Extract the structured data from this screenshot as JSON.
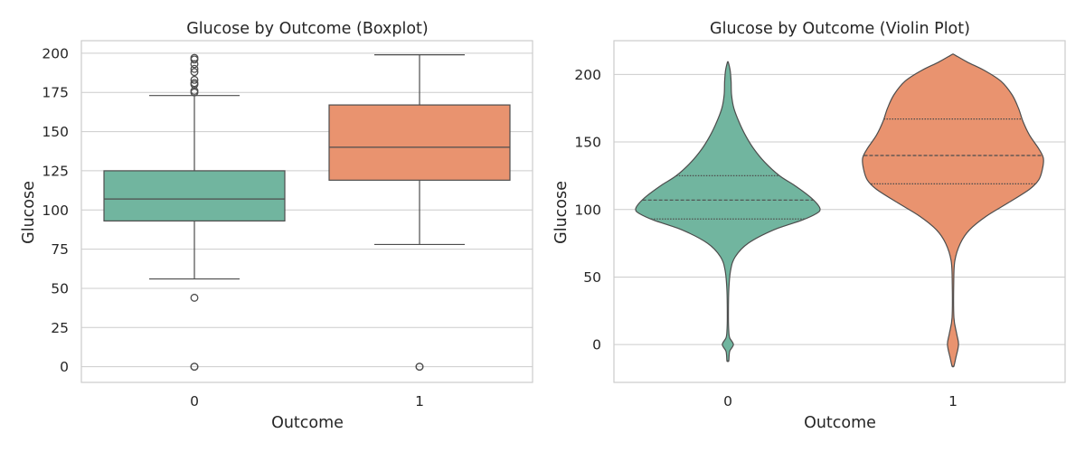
{
  "chart_data": [
    {
      "type": "box",
      "title": "Glucose by Outcome (Boxplot)",
      "xlabel": "Outcome",
      "ylabel": "Glucose",
      "ylim": [
        -10,
        208
      ],
      "yticks": [
        0,
        25,
        50,
        75,
        100,
        125,
        150,
        175,
        200
      ],
      "grid": true,
      "categories": [
        "0",
        "1"
      ],
      "colors": [
        "#71b59f",
        "#e9936f"
      ],
      "boxes": [
        {
          "category": "0",
          "whisker_low": 56,
          "q1": 93,
          "median": 107,
          "q3": 125,
          "whisker_high": 173,
          "outliers": [
            0,
            0,
            44,
            175,
            176,
            180,
            181,
            183,
            188,
            190,
            193,
            196,
            197
          ]
        },
        {
          "category": "1",
          "whisker_low": 78,
          "q1": 119,
          "median": 140,
          "q3": 167,
          "whisker_high": 199,
          "outliers": [
            0,
            0
          ]
        }
      ]
    },
    {
      "type": "violin",
      "title": "Glucose by Outcome (Violin Plot)",
      "xlabel": "Outcome",
      "ylabel": "Glucose",
      "ylim": [
        -28,
        225
      ],
      "yticks": [
        0,
        50,
        100,
        150,
        200
      ],
      "grid": true,
      "categories": [
        "0",
        "1"
      ],
      "colors": [
        "#71b59f",
        "#e9936f"
      ],
      "violins": [
        {
          "category": "0",
          "q1": 93,
          "median": 107,
          "q3": 125,
          "density": [
            [
              -12,
              0.01
            ],
            [
              -5,
              0.02
            ],
            [
              0,
              0.06
            ],
            [
              5,
              0.02
            ],
            [
              10,
              0.01
            ],
            [
              20,
              0.006
            ],
            [
              40,
              0.01
            ],
            [
              55,
              0.03
            ],
            [
              65,
              0.08
            ],
            [
              75,
              0.22
            ],
            [
              85,
              0.5
            ],
            [
              92,
              0.8
            ],
            [
              97,
              0.96
            ],
            [
              100,
              1.0
            ],
            [
              104,
              0.97
            ],
            [
              110,
              0.88
            ],
            [
              118,
              0.72
            ],
            [
              125,
              0.56
            ],
            [
              135,
              0.4
            ],
            [
              145,
              0.28
            ],
            [
              155,
              0.19
            ],
            [
              165,
              0.12
            ],
            [
              175,
              0.065
            ],
            [
              185,
              0.04
            ],
            [
              195,
              0.035
            ],
            [
              203,
              0.025
            ],
            [
              209,
              0.005
            ]
          ]
        },
        {
          "category": "1",
          "q1": 119,
          "median": 140,
          "q3": 167,
          "density": [
            [
              -16,
              0.01
            ],
            [
              -10,
              0.03
            ],
            [
              0,
              0.06
            ],
            [
              8,
              0.04
            ],
            [
              20,
              0.01
            ],
            [
              45,
              0.008
            ],
            [
              62,
              0.02
            ],
            [
              75,
              0.08
            ],
            [
              85,
              0.18
            ],
            [
              95,
              0.36
            ],
            [
              105,
              0.6
            ],
            [
              115,
              0.83
            ],
            [
              122,
              0.93
            ],
            [
              130,
              0.97
            ],
            [
              138,
              0.98
            ],
            [
              145,
              0.93
            ],
            [
              155,
              0.83
            ],
            [
              165,
              0.76
            ],
            [
              175,
              0.71
            ],
            [
              185,
              0.64
            ],
            [
              195,
              0.52
            ],
            [
              203,
              0.34
            ],
            [
              209,
              0.16
            ],
            [
              214,
              0.03
            ],
            [
              215,
              0.005
            ]
          ]
        }
      ]
    }
  ]
}
